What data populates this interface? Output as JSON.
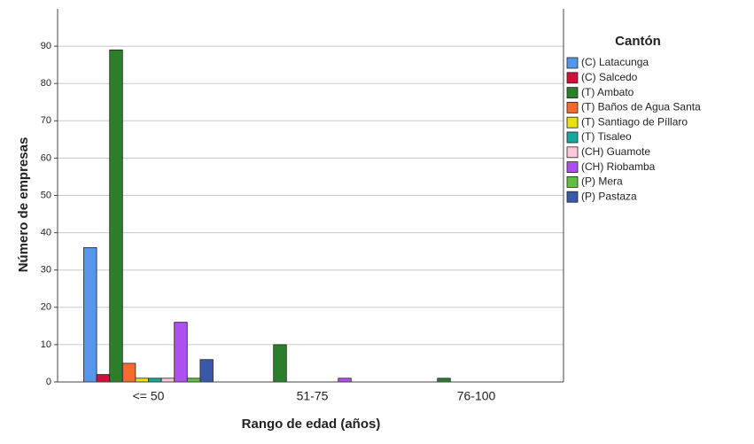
{
  "chart_data": {
    "type": "bar",
    "x_label": "Rango de edad (años)",
    "y_label": "Número de empresas",
    "legend_title": "Cantón",
    "legend_position": "right",
    "grid": true,
    "categories": [
      "<= 50",
      "51-75",
      "76-100"
    ],
    "ylim": [
      0,
      100
    ],
    "yticks": [
      0,
      10,
      20,
      30,
      40,
      50,
      60,
      70,
      80,
      90
    ],
    "series": [
      {
        "name": "(C) Latacunga",
        "color": "#5496ea",
        "values": [
          36,
          0,
          0
        ]
      },
      {
        "name": "(C) Salcedo",
        "color": "#d2103c",
        "values": [
          2,
          0,
          0
        ]
      },
      {
        "name": "(T) Ambato",
        "color": "#2b7f2b",
        "values": [
          89,
          10,
          1
        ]
      },
      {
        "name": "(T) Baños de Agua Santa",
        "color": "#f46c2c",
        "values": [
          5,
          0,
          0
        ]
      },
      {
        "name": "(T) Santiago de Píllaro",
        "color": "#e8e010",
        "values": [
          1,
          0,
          0
        ]
      },
      {
        "name": "(T) Tisaleo",
        "color": "#16a89a",
        "values": [
          1,
          0,
          0
        ]
      },
      {
        "name": "(CH) Guamote",
        "color": "#ffc8dc",
        "values": [
          1,
          0,
          0
        ]
      },
      {
        "name": "(CH) Riobamba",
        "color": "#ac50f0",
        "values": [
          16,
          1,
          0
        ]
      },
      {
        "name": "(P) Mera",
        "color": "#62c040",
        "values": [
          1,
          0,
          0
        ]
      },
      {
        "name": "(P) Pastaza",
        "color": "#3a58a8",
        "values": [
          6,
          0,
          0
        ]
      }
    ]
  }
}
